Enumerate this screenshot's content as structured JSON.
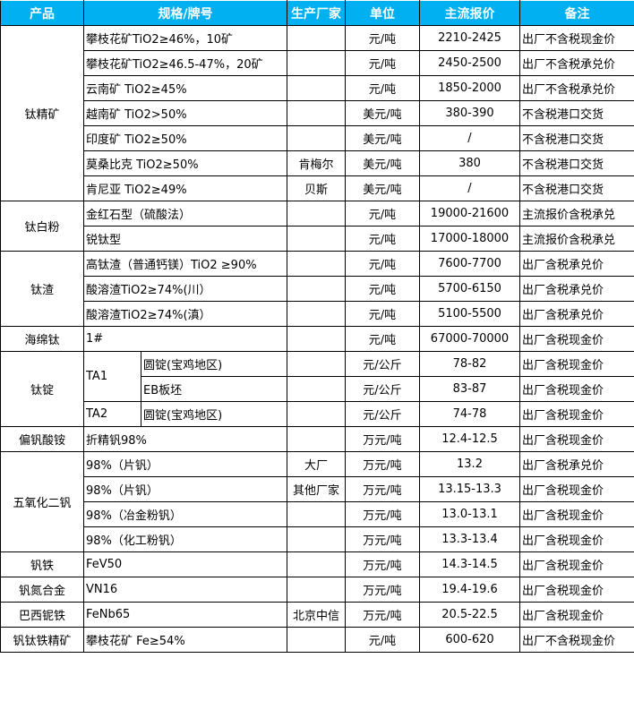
{
  "header": [
    "产品",
    "规格/牌号",
    "生产厂家",
    "单位",
    "主流报价",
    "备注"
  ],
  "rows": [
    {
      "product": "钛精矿",
      "span": 7,
      "spec": "攀枝花矿TiO2≥46%，10矿",
      "maker": "",
      "unit": "元/吨",
      "price": "2210-2425",
      "note": "出厂不含税现金价"
    },
    {
      "spec": "攀枝花矿TiO2≥46.5-47%，20矿",
      "maker": "",
      "unit": "元/吨",
      "price": "2450-2500",
      "note": "出厂不含税承兑价"
    },
    {
      "spec": "云南矿 TiO2≥45%",
      "maker": "",
      "unit": "元/吨",
      "price": "1850-2000",
      "note": "出厂不含税承兑价"
    },
    {
      "spec": "越南矿 TiO2>50%",
      "maker": "",
      "unit": "美元/吨",
      "price": "380-390",
      "note": "不含税港口交货"
    },
    {
      "spec": "印度矿 TiO2≥50%",
      "maker": "",
      "unit": "美元/吨",
      "price": "/",
      "note": "不含税港口交货"
    },
    {
      "spec": "莫桑比克 TiO2≥50%",
      "maker": "肯梅尔",
      "unit": "美元/吨",
      "price": "380",
      "note": "不含税港口交货"
    },
    {
      "spec": "肯尼亚 TiO2≥49%",
      "maker": "贝斯",
      "unit": "美元/吨",
      "price": "/",
      "note": "不含税港口交货"
    },
    {
      "product": "钛白粉",
      "span": 2,
      "spec": "金红石型（硫酸法）",
      "maker": "",
      "unit": "元/吨",
      "price": "19000-21600",
      "note": "主流报价含税承兑"
    },
    {
      "spec": "锐钛型",
      "maker": "",
      "unit": "元/吨",
      "price": "17000-18000",
      "note": "主流报价含税承兑"
    },
    {
      "product": "钛渣",
      "span": 3,
      "spec": "高钛渣（普通钙镁）TiO2 ≥90%",
      "maker": "",
      "unit": "元/吨",
      "price": "7600-7700",
      "note": "出厂含税承兑价"
    },
    {
      "spec": "酸溶渣TiO2≥74%(川）",
      "maker": "",
      "unit": "元/吨",
      "price": "5700-6150",
      "note": "出厂含税承兑价"
    },
    {
      "spec": "酸溶渣TiO2≥74%(滇）",
      "maker": "",
      "unit": "元/吨",
      "price": "5100-5500",
      "note": "出厂含税承兑价"
    },
    {
      "product": "海绵钛",
      "span": 1,
      "spec": "1#",
      "maker": "",
      "unit": "元/吨",
      "price": "67000-70000",
      "note": "出厂含税现金价"
    },
    {
      "product": "钛锭",
      "span": 3,
      "grade": "TA1",
      "gspan": 2,
      "spec": "圆锭(宝鸡地区)",
      "maker": "",
      "unit": "元/公斤",
      "price": "78-82",
      "note": "出厂含税现金价"
    },
    {
      "spec": "EB板坯",
      "maker": "",
      "unit": "元/公斤",
      "price": "83-87",
      "note": "出厂含税现金价"
    },
    {
      "grade": "TA2",
      "gspan": 1,
      "spec": "圆锭(宝鸡地区)",
      "maker": "",
      "unit": "元/公斤",
      "price": "74-78",
      "note": "出厂含税现金价"
    },
    {
      "product": "偏钒酸铵",
      "span": 1,
      "spec": "折精钒98%",
      "maker": "",
      "unit": "万元/吨",
      "price": "12.4-12.5",
      "note": "出厂含税现金价"
    },
    {
      "product": "五氧化二钒",
      "span": 4,
      "spec": "98%（片钒）",
      "maker": "大厂",
      "unit": "万元/吨",
      "price": "13.2",
      "note": "出厂含税承兑价"
    },
    {
      "spec": "98%（片钒）",
      "maker": "其他厂家",
      "unit": "万元/吨",
      "price": "13.15-13.3",
      "note": "出厂含税现金价"
    },
    {
      "spec": "98%（冶金粉钒）",
      "maker": "",
      "unit": "万元/吨",
      "price": "13.0-13.1",
      "note": "出厂含税现金价"
    },
    {
      "spec": "98%（化工粉钒）",
      "maker": "",
      "unit": "万元/吨",
      "price": "13.3-13.4",
      "note": "出厂含税现金价"
    },
    {
      "product": "钒铁",
      "span": 1,
      "spec": "FeV50",
      "maker": "",
      "unit": "万元/吨",
      "price": "14.3-14.5",
      "note": "出厂含税现金价"
    },
    {
      "product": "钒氮合金",
      "span": 1,
      "spec": "VN16",
      "maker": "",
      "unit": "万元/吨",
      "price": "19.4-19.6",
      "note": "出厂含税现金价"
    },
    {
      "product": "巴西铌铁",
      "span": 1,
      "spec": "FeNb65",
      "maker": "北京中信",
      "unit": "万元/吨",
      "price": "20.5-22.5",
      "note": "出厂含税现金价"
    },
    {
      "product": "钒钛铁精矿",
      "span": 1,
      "spec": "攀枝花矿 Fe≥54%",
      "maker": "",
      "unit": "元/吨",
      "price": "600-620",
      "note": "出厂不含税现金价"
    }
  ]
}
